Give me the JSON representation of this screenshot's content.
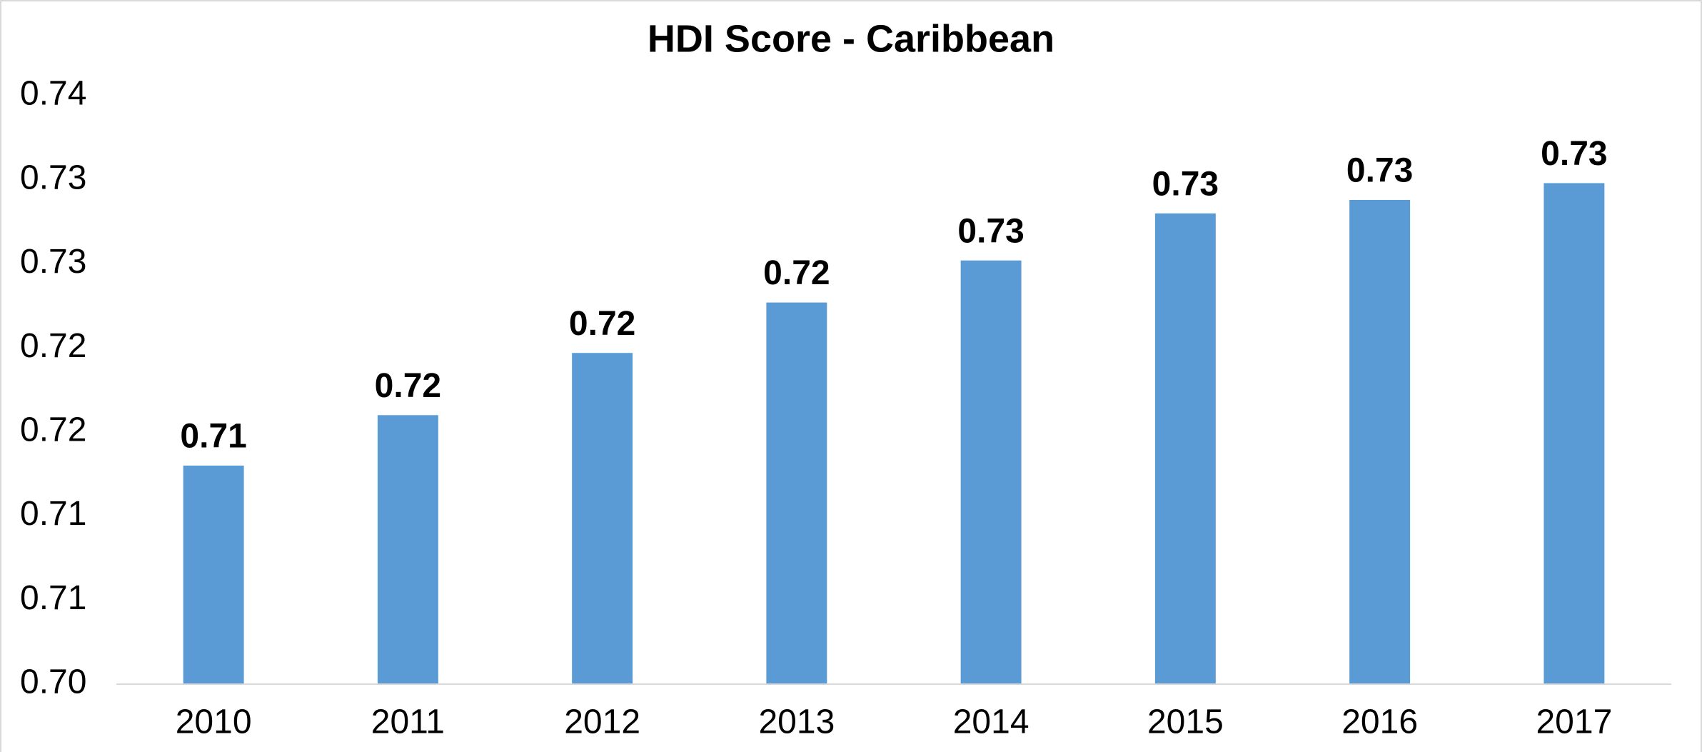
{
  "chart_data": {
    "type": "bar",
    "title": "HDI Score - Caribbean",
    "categories": [
      "2010",
      "2011",
      "2012",
      "2013",
      "2014",
      "2015",
      "2016",
      "2017"
    ],
    "values": [
      0.713,
      0.716,
      0.7197,
      0.7227,
      0.7252,
      0.728,
      0.7288,
      0.7298
    ],
    "value_labels": [
      "0.71",
      "0.72",
      "0.72",
      "0.72",
      "0.73",
      "0.73",
      "0.73",
      "0.73"
    ],
    "color": "#5b9bd5",
    "ylim": [
      0.7,
      0.735
    ],
    "yticks": [
      {
        "value": 0.7,
        "label": "0.70"
      },
      {
        "value": 0.705,
        "label": "0.71"
      },
      {
        "value": 0.71,
        "label": "0.71"
      },
      {
        "value": 0.715,
        "label": "0.72"
      },
      {
        "value": 0.72,
        "label": "0.72"
      },
      {
        "value": 0.725,
        "label": "0.73"
      },
      {
        "value": 0.73,
        "label": "0.73"
      },
      {
        "value": 0.735,
        "label": "0.74"
      }
    ],
    "grid": false
  }
}
